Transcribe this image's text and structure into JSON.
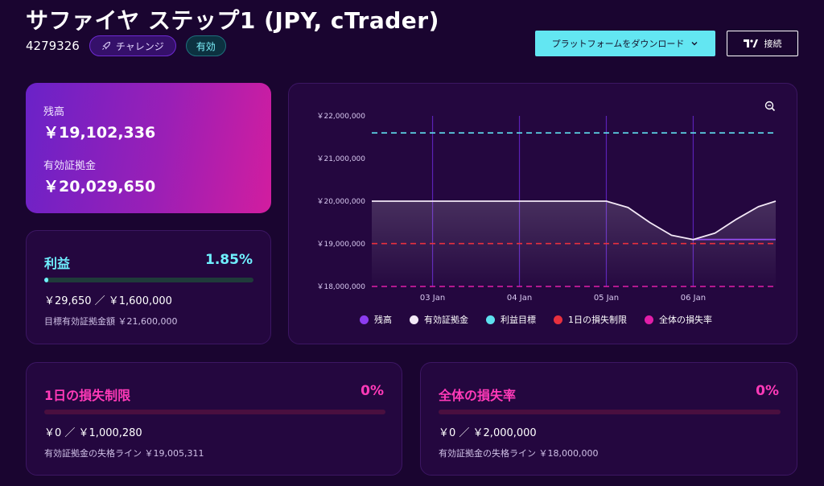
{
  "header": {
    "title": "サファイヤ ステップ1 (JPY, cTrader)",
    "account_id": "4279326",
    "badge_challenge": "チャレンジ",
    "badge_active": "有効",
    "download_button": "プラットフォームをダウンロード",
    "connect_button": "接続"
  },
  "balance": {
    "balance_label": "残高",
    "balance_value": "￥19,102,336",
    "equity_label": "有効証拠金",
    "equity_value": "￥20,029,650"
  },
  "profit": {
    "title": "利益",
    "percent": "1.85%",
    "progress_fraction": 0.0185,
    "amount": "￥29,650 ／ ￥1,600,000",
    "target": "目標有効証拠金額 ￥21,600,000"
  },
  "daily_loss": {
    "title": "1日の損失制限",
    "percent": "0%",
    "progress_fraction": 0,
    "amount": "￥0 ／ ￥1,000,280",
    "line": "有効証拠金の失格ライン ￥19,005,311"
  },
  "overall_loss": {
    "title": "全体の損失率",
    "percent": "0%",
    "progress_fraction": 0,
    "amount": "￥0 ／ ￥2,000,000",
    "line": "有効証拠金の失格ライン ￥18,000,000"
  },
  "colors": {
    "balance": "#8c3cf0",
    "equity": "#f4e9f7",
    "profit_target": "#5ee0ef",
    "daily_loss": "#e8303e",
    "overall_loss": "#e11ea8",
    "profit_fill": "#6ff0ff"
  },
  "chart_data": {
    "type": "line",
    "x_ticks": [
      "03 Jan",
      "04 Jan",
      "05 Jan",
      "06 Jan"
    ],
    "y_ticks": [
      "￥22,000,000",
      "￥21,000,000",
      "￥20,000,000",
      "￥19,000,000",
      "￥18,000,000"
    ],
    "y_tick_values": [
      22000000,
      21000000,
      20000000,
      19000000,
      18000000
    ],
    "ylim": [
      18000000,
      22000000
    ],
    "xlim": [
      2.3,
      6.95
    ],
    "grid": "vertical",
    "legend_position": "bottom",
    "series": [
      {
        "name": "残高",
        "kind": "line",
        "color": "#8c3cf0",
        "x": [
          6.0,
          6.95
        ],
        "y": [
          19102336,
          19102336
        ]
      },
      {
        "name": "有効証拠金",
        "kind": "area",
        "color": "#f4e9f7",
        "x": [
          2.3,
          3.0,
          4.0,
          5.0,
          5.25,
          5.5,
          5.75,
          6.0,
          6.25,
          6.5,
          6.75,
          6.95
        ],
        "y": [
          20000000,
          20000000,
          20000000,
          20000000,
          19850000,
          19500000,
          19200000,
          19100000,
          19250000,
          19580000,
          19870000,
          20000000
        ]
      },
      {
        "name": "利益目標",
        "kind": "dashed",
        "color": "#5ee0ef",
        "y": [
          21600000
        ]
      },
      {
        "name": "1日の損失制限",
        "kind": "dashed",
        "color": "#e8303e",
        "y": [
          19005311
        ]
      },
      {
        "name": "全体の損失率",
        "kind": "dashed",
        "color": "#e11ea8",
        "y": [
          18000000
        ]
      }
    ]
  }
}
